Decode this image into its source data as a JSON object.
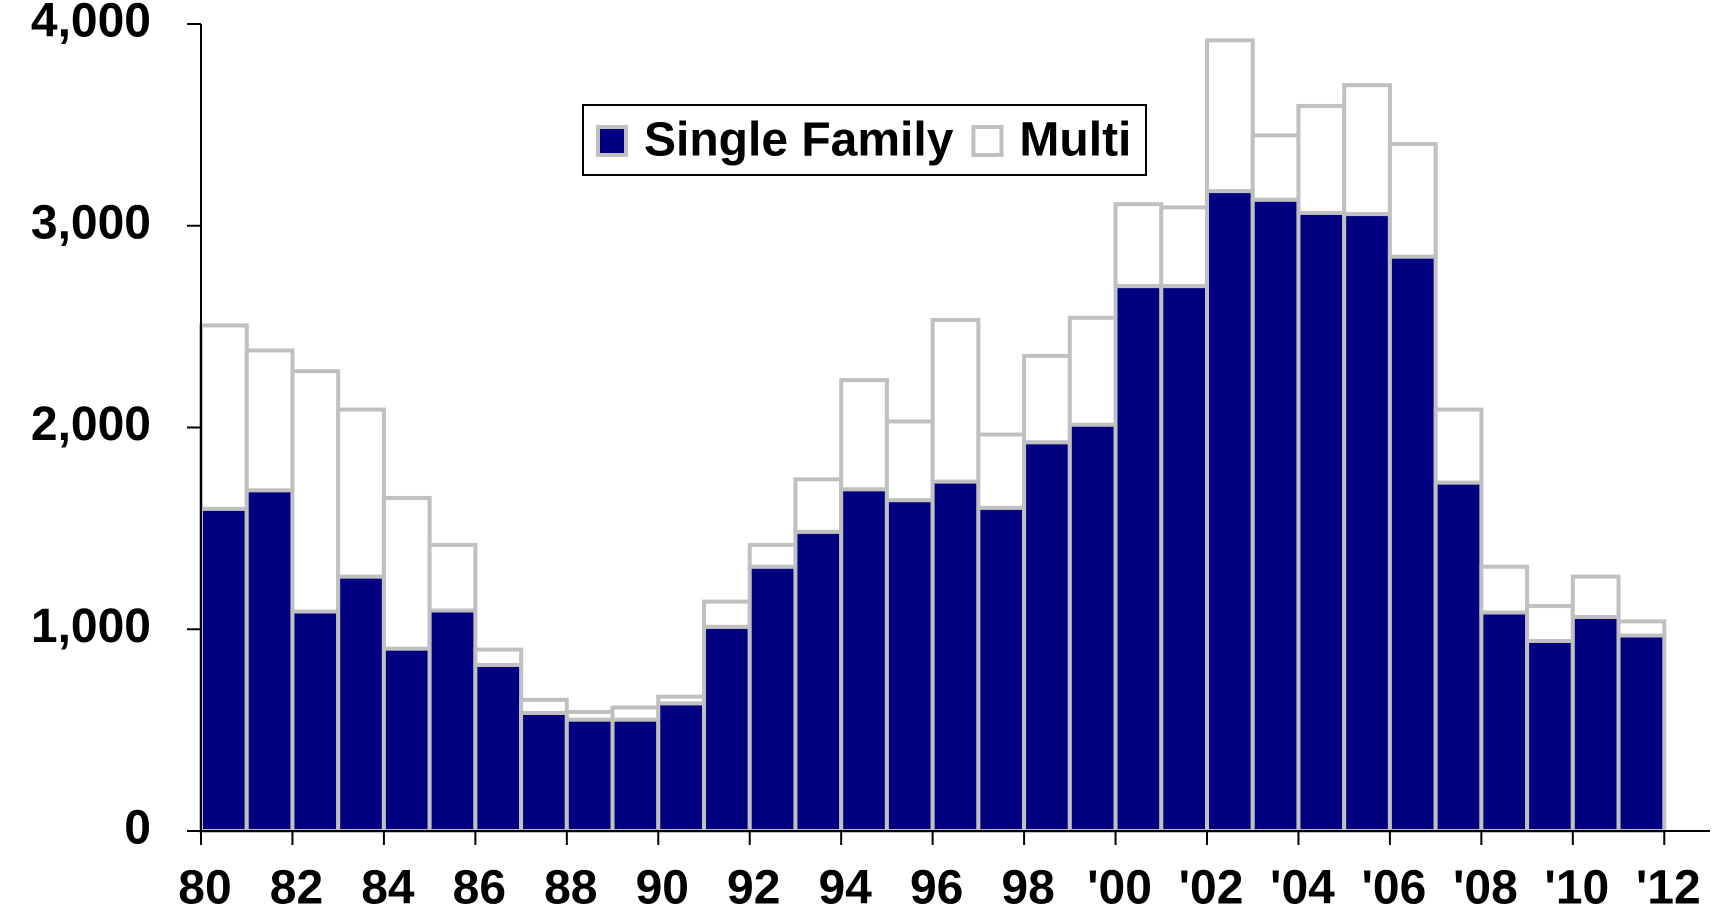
{
  "chart_data": {
    "type": "stacked-bar",
    "x": [
      1980,
      1981,
      1982,
      1983,
      1984,
      1985,
      1986,
      1987,
      1988,
      1989,
      1990,
      1991,
      1992,
      1993,
      1994,
      1995,
      1996,
      1997,
      1998,
      1999,
      2000,
      2001,
      2002,
      2003,
      2004,
      2005,
      2006,
      2007,
      2008,
      2009,
      2010,
      2011
    ],
    "series": [
      {
        "name": "Single Family",
        "color": "#000080",
        "values": [
          1597,
          1689,
          1088,
          1261,
          904,
          1093,
          823,
          585,
          552,
          552,
          633,
          1012,
          1310,
          1483,
          1694,
          1640,
          1732,
          1602,
          1927,
          2014,
          2701,
          2701,
          3172,
          3129,
          3064,
          3058,
          2847,
          1727,
          1083,
          942,
          1061,
          969
        ]
      },
      {
        "name": "Multi",
        "color": "#ffffff",
        "values": [
          909,
          693,
          1191,
          828,
          747,
          325,
          76,
          65,
          38,
          60,
          33,
          125,
          108,
          260,
          541,
          390,
          801,
          363,
          428,
          530,
          406,
          390,
          747,
          319,
          530,
          639,
          558,
          362,
          227,
          173,
          200,
          70
        ]
      }
    ],
    "outline": "#c0c0c0",
    "xlim": [
      1980,
      2013
    ],
    "xticks": [
      {
        "value": 1980,
        "label": "80"
      },
      {
        "value": 1982,
        "label": "82"
      },
      {
        "value": 1984,
        "label": "84"
      },
      {
        "value": 1986,
        "label": "86"
      },
      {
        "value": 1988,
        "label": "88"
      },
      {
        "value": 1990,
        "label": "90"
      },
      {
        "value": 1992,
        "label": "92"
      },
      {
        "value": 1994,
        "label": "94"
      },
      {
        "value": 1996,
        "label": "96"
      },
      {
        "value": 1998,
        "label": "98"
      },
      {
        "value": 2000,
        "label": "'00"
      },
      {
        "value": 2002,
        "label": "'02"
      },
      {
        "value": 2004,
        "label": "'04"
      },
      {
        "value": 2006,
        "label": "'06"
      },
      {
        "value": 2008,
        "label": "'08"
      },
      {
        "value": 2010,
        "label": "'10"
      },
      {
        "value": 2012,
        "label": "'12"
      }
    ],
    "ylim": [
      0,
      4000
    ],
    "yticks": [
      0,
      {
        "value": 1000,
        "label": "1,000"
      },
      {
        "value": 2000,
        "label": "2,000"
      },
      {
        "value": 3000,
        "label": "3,000"
      },
      {
        "value": 4000,
        "label": "4,000"
      }
    ],
    "legend": "top"
  }
}
